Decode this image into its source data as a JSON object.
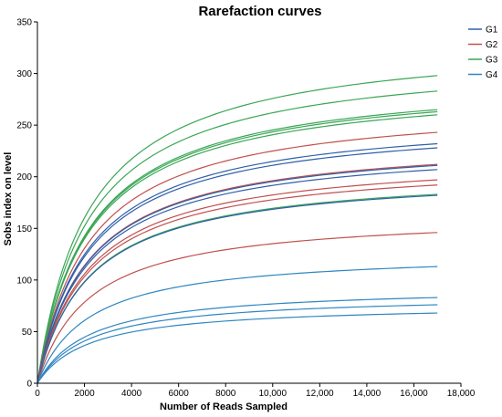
{
  "chart_data": {
    "type": "line",
    "title": "Rarefaction curves",
    "xlabel": "Number of Reads Sampled",
    "ylabel": "Sobs index on level",
    "xlim": [
      0,
      18000
    ],
    "ylim": [
      0,
      350
    ],
    "x_ticks": [
      0,
      2000,
      4000,
      6000,
      8000,
      10000,
      12000,
      14000,
      16000,
      18000
    ],
    "x_tick_labels": [
      "0",
      "2000",
      "4000",
      "6000",
      "8000",
      "10,000",
      "12,000",
      "14,000",
      "16,000",
      "18,000"
    ],
    "y_ticks": [
      0,
      50,
      100,
      150,
      200,
      250,
      300,
      350
    ],
    "y_tick_labels": [
      "0",
      "50",
      "100",
      "150",
      "200",
      "250",
      "300",
      "350"
    ],
    "grid": false,
    "legend": {
      "position": "top-right",
      "entries": [
        {
          "name": "G1",
          "color": "#2f5fa8"
        },
        {
          "name": "G2",
          "color": "#c0504d"
        },
        {
          "name": "G3",
          "color": "#3aa655"
        },
        {
          "name": "G4",
          "color": "#2e86c1"
        }
      ]
    },
    "x_max": 17000,
    "series": [
      {
        "group": "G3",
        "color": "#3aa655",
        "final": 298
      },
      {
        "group": "G3",
        "color": "#3aa655",
        "final": 283
      },
      {
        "group": "G3",
        "color": "#3aa655",
        "final": 265
      },
      {
        "group": "G3",
        "color": "#3aa655",
        "final": 263
      },
      {
        "group": "G3",
        "color": "#3aa655",
        "final": 260
      },
      {
        "group": "G2",
        "color": "#c0504d",
        "final": 243
      },
      {
        "group": "G1",
        "color": "#2f5fa8",
        "final": 232
      },
      {
        "group": "G1",
        "color": "#2f5fa8",
        "final": 228
      },
      {
        "group": "G2",
        "color": "#c0504d",
        "final": 212
      },
      {
        "group": "G1",
        "color": "#2f5fa8",
        "final": 211
      },
      {
        "group": "G1",
        "color": "#2f5fa8",
        "final": 207
      },
      {
        "group": "G2",
        "color": "#c0504d",
        "final": 197
      },
      {
        "group": "G2",
        "color": "#c0504d",
        "final": 192
      },
      {
        "group": "G3",
        "color": "#3aa655",
        "final": 183
      },
      {
        "group": "G1",
        "color": "#2f5fa8",
        "final": 182
      },
      {
        "group": "G2",
        "color": "#c0504d",
        "final": 146
      },
      {
        "group": "G4",
        "color": "#2e86c1",
        "final": 113
      },
      {
        "group": "G4",
        "color": "#2e86c1",
        "final": 83
      },
      {
        "group": "G4",
        "color": "#2e86c1",
        "final": 76
      },
      {
        "group": "G4",
        "color": "#2e86c1",
        "final": 68
      }
    ]
  }
}
